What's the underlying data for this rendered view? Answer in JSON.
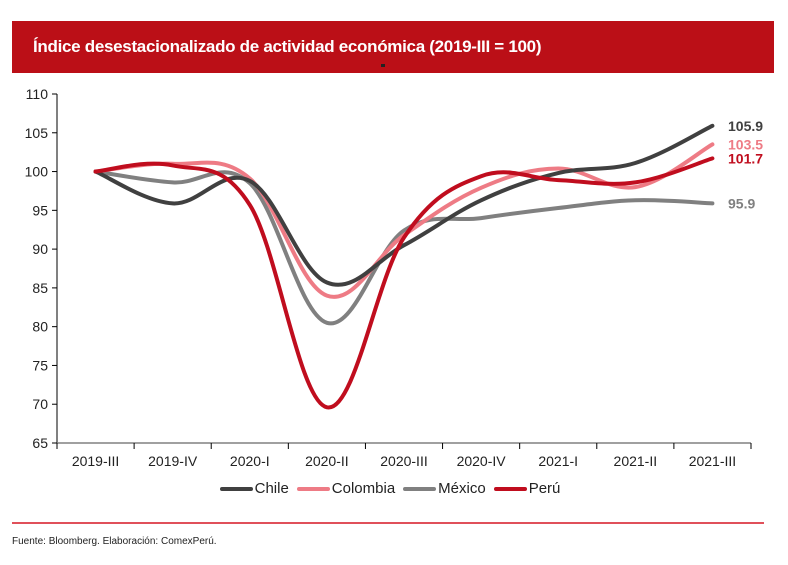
{
  "header": {
    "title": "Índice desestacionalizado  de actividad económica (2019-III = 100)"
  },
  "footer": {
    "source": "Fuente: Bloomberg.  Elaboración:  ComexPerú."
  },
  "chart_data": {
    "type": "line",
    "title": "Índice desestacionalizado  de actividad económica (2019-III = 100)",
    "xlabel": "",
    "ylabel": "",
    "ylim": [
      65,
      110
    ],
    "yticks": [
      65,
      70,
      75,
      80,
      85,
      90,
      95,
      100,
      105,
      110
    ],
    "categories": [
      "2019-III",
      "2019-IV",
      "2020-I",
      "2020-II",
      "2020-III",
      "2020-IV",
      "2021-I",
      "2021-II",
      "2021-III"
    ],
    "legend_position": "bottom",
    "grid": false,
    "series": [
      {
        "name": "Chile",
        "color": "#404040",
        "values": [
          100,
          95.9,
          98.8,
          85.7,
          90.5,
          96.3,
          99.8,
          101.1,
          105.9
        ],
        "end_label": "105.9"
      },
      {
        "name": "Colombia",
        "color": "#ee7b85",
        "values": [
          100,
          101.0,
          99.1,
          84.0,
          91.8,
          97.9,
          100.4,
          98.0,
          103.5
        ],
        "end_label": "103.5"
      },
      {
        "name": "México",
        "color": "#808080",
        "values": [
          100,
          98.6,
          98.5,
          80.5,
          92.4,
          94.0,
          95.3,
          96.3,
          95.9
        ],
        "end_label": "95.9"
      },
      {
        "name": "Perú",
        "color": "#c00d1e",
        "values": [
          100,
          100.8,
          95.7,
          69.6,
          91.5,
          99.4,
          98.9,
          98.6,
          101.7
        ],
        "end_label": "101.7"
      }
    ]
  }
}
